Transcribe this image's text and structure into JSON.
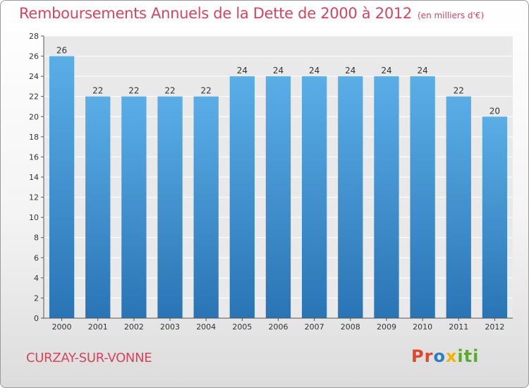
{
  "header": {
    "title": "Remboursements Annuels de la Dette de 2000 à 2012",
    "unit": "(en milliers d'€)"
  },
  "footer": {
    "place": "CURZAY-SUR-VONNE",
    "logo": "Proxiti"
  },
  "colors": {
    "accent": "#d4455e",
    "bar_top": "#5aaee6",
    "bar_bottom": "#2a74b5"
  },
  "chart_data": {
    "type": "bar",
    "title": "Remboursements Annuels de la Dette de 2000 à 2012",
    "subtitle": "(en milliers d'€)",
    "categories": [
      "2000",
      "2001",
      "2002",
      "2003",
      "2004",
      "2005",
      "2006",
      "2007",
      "2008",
      "2009",
      "2010",
      "2011",
      "2012"
    ],
    "values": [
      26,
      22,
      22,
      22,
      22,
      24,
      24,
      24,
      24,
      24,
      24,
      22,
      20
    ],
    "ylim": [
      0,
      28
    ],
    "yticks": [
      0,
      2,
      4,
      6,
      8,
      10,
      12,
      14,
      16,
      18,
      20,
      22,
      24,
      26,
      28
    ],
    "grid": true,
    "data_labels": true
  }
}
